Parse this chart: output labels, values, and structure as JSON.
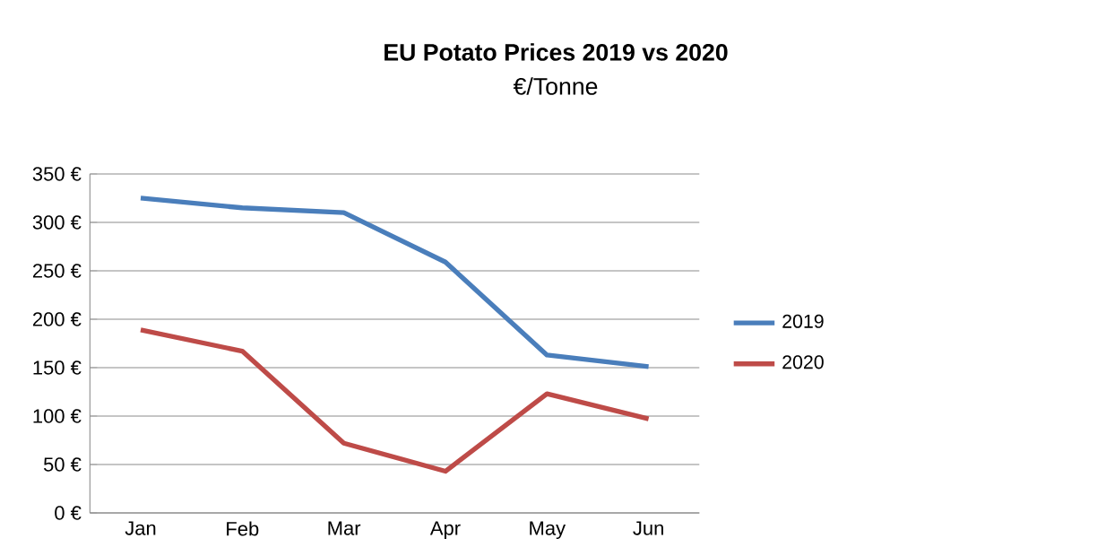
{
  "chart_data": {
    "type": "line",
    "title": "EU Potato Prices 2019 vs 2020",
    "subtitle": "€/Tonne",
    "categories": [
      "Jan",
      "Feb",
      "Mar",
      "Apr",
      "May",
      "Jun"
    ],
    "series": [
      {
        "name": "2019",
        "color": "#4a7ebb",
        "values": [
          325,
          315,
          310,
          259,
          163,
          151
        ]
      },
      {
        "name": "2020",
        "color": "#be4b48",
        "values": [
          189,
          167,
          72,
          43,
          123,
          97
        ]
      }
    ],
    "ylim": [
      0,
      350
    ],
    "yticks": [
      {
        "value": 0,
        "label": "0 €"
      },
      {
        "value": 50,
        "label": "50 €"
      },
      {
        "value": 100,
        "label": "100 €"
      },
      {
        "value": 150,
        "label": "150 €"
      },
      {
        "value": 200,
        "label": "200 €"
      },
      {
        "value": 250,
        "label": "250 €"
      },
      {
        "value": 300,
        "label": "300 €"
      },
      {
        "value": 350,
        "label": "350 €"
      }
    ],
    "grid": "y",
    "legend": "right",
    "marker": "none",
    "line_style": "solid"
  }
}
